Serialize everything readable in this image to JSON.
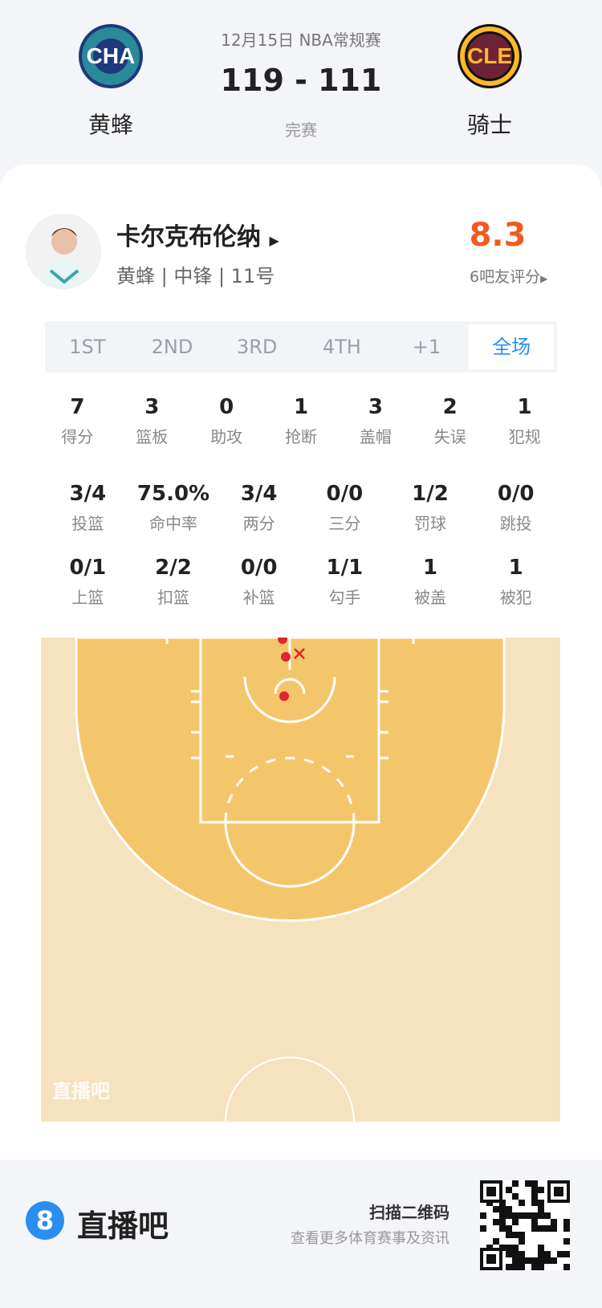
{
  "game": {
    "date_league": "12月15日 NBA常规赛",
    "score": "119 - 111",
    "status": "完赛"
  },
  "home": {
    "abbr": "CHA",
    "name": "黄蜂"
  },
  "away": {
    "abbr": "CLE",
    "name": "骑士"
  },
  "player": {
    "name": "卡尔克布伦纳",
    "info": "黄蜂 | 中锋 | 11号",
    "rating": "8.3",
    "rating_label": "6吧友评分"
  },
  "tabs": [
    "1ST",
    "2ND",
    "3RD",
    "4TH",
    "+1",
    "全场"
  ],
  "active_tab": "全场",
  "stats_rows": [
    [
      {
        "v": "7",
        "l": "得分"
      },
      {
        "v": "3",
        "l": "篮板"
      },
      {
        "v": "0",
        "l": "助攻"
      },
      {
        "v": "1",
        "l": "抢断"
      },
      {
        "v": "3",
        "l": "盖帽"
      },
      {
        "v": "2",
        "l": "失误"
      },
      {
        "v": "1",
        "l": "犯规"
      }
    ],
    [
      {
        "v": "3/4",
        "l": "投篮"
      },
      {
        "v": "75.0%",
        "l": "命中率"
      },
      {
        "v": "3/4",
        "l": "两分"
      },
      {
        "v": "0/0",
        "l": "三分"
      },
      {
        "v": "1/2",
        "l": "罚球"
      },
      {
        "v": "0/0",
        "l": "跳投"
      }
    ],
    [
      {
        "v": "0/1",
        "l": "上篮"
      },
      {
        "v": "2/2",
        "l": "扣篮"
      },
      {
        "v": "0/0",
        "l": "补篮"
      },
      {
        "v": "1/1",
        "l": "勾手"
      },
      {
        "v": "1",
        "l": "被盖"
      },
      {
        "v": "1",
        "l": "被犯"
      }
    ]
  ],
  "court": {
    "watermark": "直播吧",
    "shots": [
      {
        "result": "made"
      },
      {
        "result": "made"
      },
      {
        "result": "made"
      },
      {
        "result": "missed"
      }
    ],
    "colors": {
      "paint": "#f4c66b",
      "floor": "#f7e2bf",
      "shot": "#e0262f"
    }
  },
  "footer": {
    "brand": "直播吧",
    "scan": "扫描二维码",
    "sub": "查看更多体育赛事及资讯"
  },
  "colors": {
    "accent": "#2a8ef0",
    "rating": "#f05a22"
  }
}
